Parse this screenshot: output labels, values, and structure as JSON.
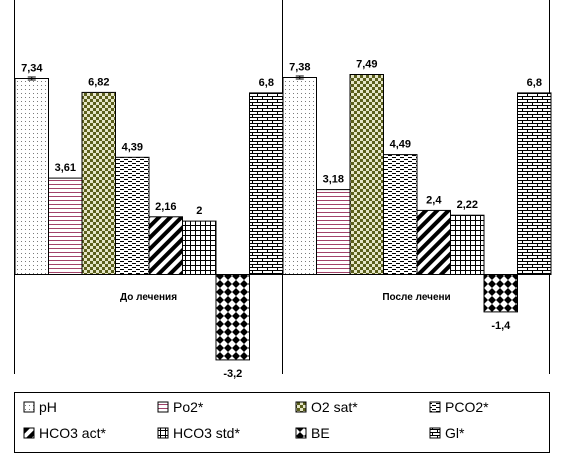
{
  "chart_data": {
    "type": "bar",
    "categories": [
      "До лечения",
      "После лечени"
    ],
    "series": [
      {
        "name": "pH",
        "values": [
          7.34,
          7.38
        ],
        "labels": [
          "7,34",
          "7,38"
        ],
        "pattern": "dots"
      },
      {
        "name": "Po2*",
        "values": [
          3.61,
          3.18
        ],
        "labels": [
          "3,61",
          "3,18"
        ],
        "pattern": "hlines"
      },
      {
        "name": "O2 sat*",
        "values": [
          6.82,
          7.49
        ],
        "labels": [
          "6,82",
          "7,49"
        ],
        "pattern": "checker-olive"
      },
      {
        "name": "PCO2*",
        "values": [
          4.39,
          4.49
        ],
        "labels": [
          "4,39",
          "4,49"
        ],
        "pattern": "dashes"
      },
      {
        "name": "HCO3 act*",
        "values": [
          2.16,
          2.4
        ],
        "labels": [
          "2,16",
          "2,4"
        ],
        "pattern": "diag"
      },
      {
        "name": "HCO3 std*",
        "values": [
          2,
          2.22
        ],
        "labels": [
          "2",
          "2,22"
        ],
        "pattern": "grid"
      },
      {
        "name": "BE",
        "values": [
          -3.2,
          -1.4
        ],
        "labels": [
          "-3,2",
          "-1,4"
        ],
        "pattern": "diamonds"
      },
      {
        "name": "Gl*",
        "values": [
          6.8,
          6.8
        ],
        "labels": [
          "6,8",
          "6,8"
        ],
        "pattern": "bricks"
      }
    ],
    "ylim": [
      -3.2,
      7.49
    ],
    "grid": false,
    "legend_position": "bottom",
    "error_bars": true
  }
}
